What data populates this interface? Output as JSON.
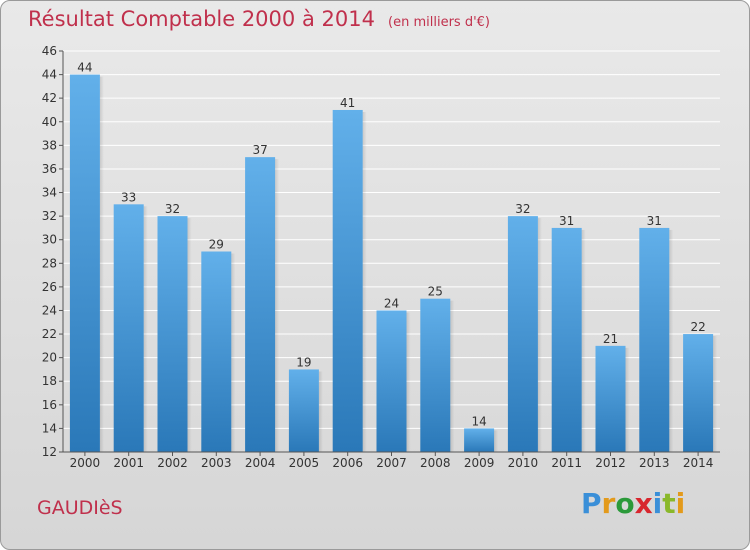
{
  "chart_data": {
    "type": "bar",
    "title": "Résultat Comptable 2000 à 2014",
    "subtitle": "(en milliers d'€)",
    "categories": [
      "2000",
      "2001",
      "2002",
      "2003",
      "2004",
      "2005",
      "2006",
      "2007",
      "2008",
      "2009",
      "2010",
      "2011",
      "2012",
      "2013",
      "2014"
    ],
    "values": [
      44,
      33,
      32,
      29,
      37,
      19,
      41,
      24,
      25,
      14,
      32,
      31,
      21,
      31,
      22
    ],
    "ylim": [
      12,
      46
    ],
    "yticks": [
      12,
      14,
      16,
      18,
      20,
      22,
      24,
      26,
      28,
      30,
      32,
      34,
      36,
      38,
      40,
      42,
      44,
      46
    ],
    "xlabel": "",
    "ylabel": "",
    "grid": true
  },
  "commune": "GAUDIèS",
  "logo": {
    "text": "Proxiti"
  },
  "colors": {
    "bar_top": "#62b0ea",
    "bar_bottom": "#2a78b8",
    "title": "#c0304c",
    "grid": "#ffffff"
  }
}
